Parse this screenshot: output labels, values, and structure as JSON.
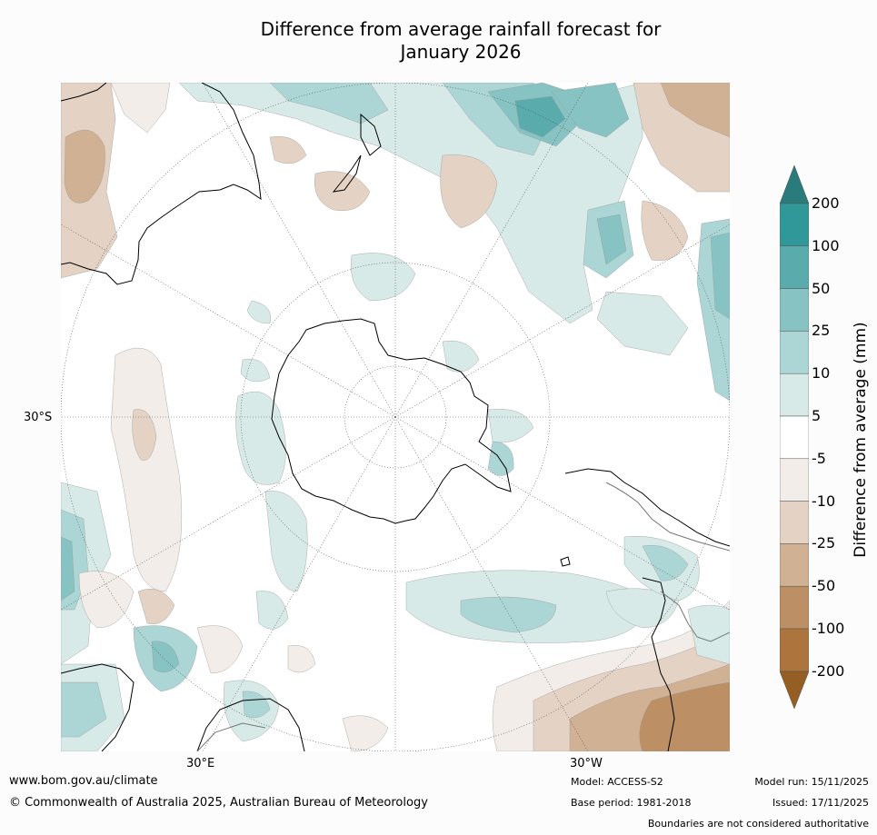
{
  "title": {
    "line1": "Difference from average rainfall forecast for",
    "line2": "January 2026"
  },
  "map": {
    "projection": "south-polar",
    "graticule_labels": {
      "lat": "30°S",
      "lon_left": "30°E",
      "lon_right": "30°W"
    }
  },
  "colorbar": {
    "title": "Difference from average (mm)",
    "ticks": [
      "200",
      "100",
      "50",
      "25",
      "10",
      "5",
      "-5",
      "-10",
      "-25",
      "-50",
      "-100",
      "-200"
    ],
    "colors": {
      "over": "#2a7b7b",
      "bands": [
        "#31989a",
        "#5aabab",
        "#86c3c2",
        "#acd6d5",
        "#d7eae8",
        "#ffffff",
        "#f2ede8",
        "#e4d3c4",
        "#d1b193",
        "#bd8f64",
        "#ad743e"
      ],
      "under": "#955f24"
    }
  },
  "footer": {
    "url": "www.bom.gov.au/climate",
    "copyright": "© Commonwealth of Australia 2025, Australian Bureau of Meteorology",
    "model": "Model: ACCESS-S2",
    "base_period": "Base period: 1981-2018",
    "model_run": "Model run: 15/11/2025",
    "issued": "Issued: 17/11/2025",
    "disclaimer": "Boundaries are not considered authoritative"
  }
}
